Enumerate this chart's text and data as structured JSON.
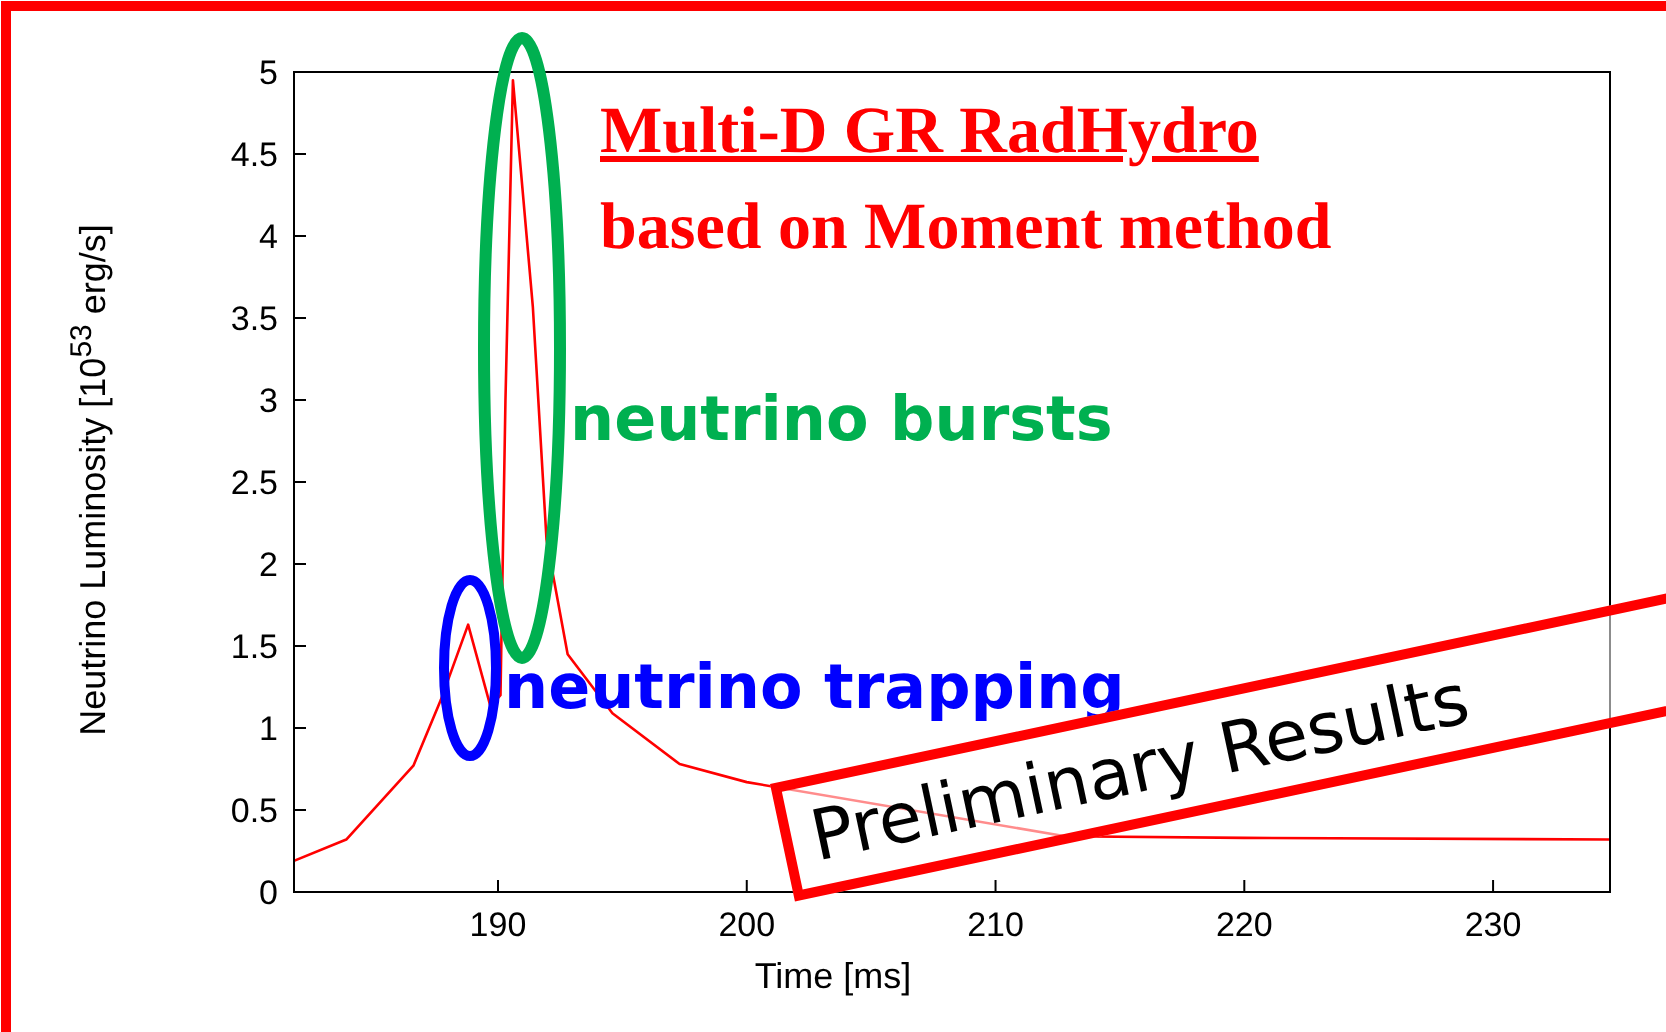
{
  "chart_data": {
    "type": "line",
    "title": "Multi-D GR RadHydro",
    "subtitle": "based on Moment method",
    "xlabel": "Time [ms]",
    "ylabel": "Neutrino Luminosity [10$^{53}$ erg/s]",
    "annotations": [
      "neutrino bursts",
      "neutrino trapping",
      "Preliminary Results"
    ],
    "x": [
      181.8,
      183.9,
      186.6,
      187.7,
      188.8,
      189.7,
      190.1,
      190.3,
      190.6,
      191.4,
      191.95,
      192.8,
      194.6,
      197.3,
      200,
      212.8,
      220,
      234.7
    ],
    "series": [
      {
        "color": "#ff0000",
        "values": [
          0.19,
          0.32,
          0.77,
          1.17,
          1.63,
          1.13,
          1.2,
          3,
          4.95,
          3.57,
          2.15,
          1.45,
          1.09,
          0.78,
          0.67,
          0.34,
          0.33,
          0.32
        ]
      }
    ],
    "xlim": [
      181.8,
      234.7
    ],
    "xticks": [
      190,
      200,
      210,
      220,
      230
    ],
    "ylim": [
      0,
      5
    ],
    "yticks": [
      0,
      0.5,
      1,
      1.5,
      2,
      2.5,
      3,
      3.5,
      4,
      4.5,
      5
    ],
    "grid": false,
    "marker": "none",
    "line_style": "solid"
  }
}
